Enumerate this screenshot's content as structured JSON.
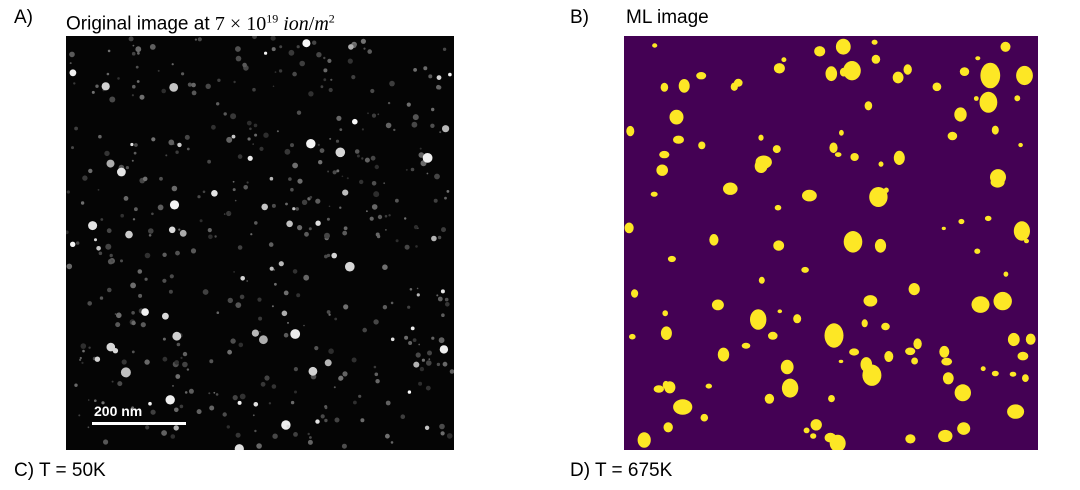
{
  "panels": {
    "a": {
      "letter": "A)",
      "title_prefix": "Original image at",
      "dose_coefficient": "7",
      "times": "×",
      "dose_base": "10",
      "dose_exponent": "19",
      "unit_numerator": "ion",
      "unit_denominator": "m",
      "unit_exponent": "2",
      "scalebar_label": "200 nm"
    },
    "b": {
      "letter": "B)",
      "title": "ML image"
    },
    "c": {
      "caption": "C) T = 50K"
    },
    "d": {
      "caption": "D) T = 675K"
    }
  },
  "colors": {
    "micrograph_background": "#050505",
    "ml_background": "#440154",
    "ml_foreground": "#fde725"
  }
}
